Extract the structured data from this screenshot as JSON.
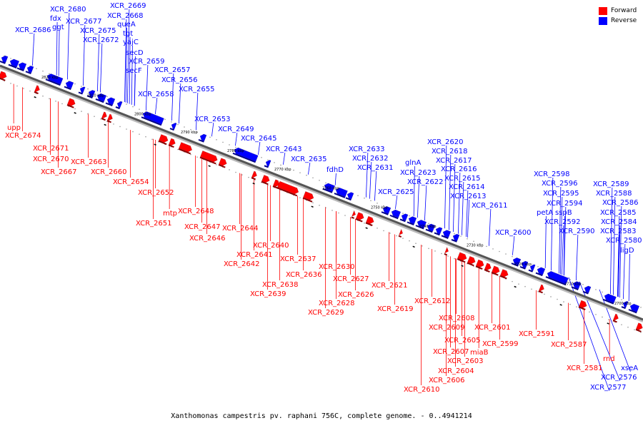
{
  "caption": "Xanthomonas campestris pv. raphani 756C, complete genome. - 0..4941214",
  "legend": [
    {
      "label": "Forward",
      "color": "#ff0000"
    },
    {
      "label": "Reverse",
      "color": "#0000ff"
    }
  ],
  "colors": {
    "forward": "#ff0000",
    "reverse": "#0000ff",
    "backbone": "#555555"
  },
  "ticks": [
    "2820 kbp",
    "2810 kbp",
    "2800 kbp",
    "2790 kbp",
    "2780 kbp",
    "2770 kbp",
    "2760 kbp",
    "2750 kbp",
    "2740 kbp",
    "2730 kbp",
    "2720 kbp",
    "2710 kbp",
    "2700 kbp"
  ],
  "reverse_labels": [
    "XCR_2680",
    "fdx",
    "ggt",
    "XCR_2686",
    "XCR_2677",
    "XCR_2669",
    "XCR_2668",
    "queA",
    "tgt",
    "XCR_2675",
    "yajC",
    "XCR_2672",
    "secD",
    "XCR_2659",
    "secF",
    "XCR_2657",
    "XCR_2656",
    "XCR_2658",
    "XCR_2655",
    "XCR_2653",
    "XCR_2649",
    "XCR_2645",
    "XCR_2643",
    "XCR_2635",
    "fdhD",
    "XCR_2633",
    "XCR_2632",
    "XCR_2631",
    "XCR_2625",
    "glnA",
    "XCR_2623",
    "XCR_2622",
    "XCR_2620",
    "XCR_2618",
    "XCR_2617",
    "XCR_2616",
    "XCR_2615",
    "XCR_2614",
    "XCR_2613",
    "XCR_2611",
    "XCR_2600",
    "XCR_2598",
    "XCR_2596",
    "XCR_2595",
    "XCR_2594",
    "petA",
    "sspB",
    "XCR_2592",
    "XCR_2590",
    "XCR_2589",
    "XCR_2588",
    "XCR_2586",
    "XCR_2585",
    "XCR_2584",
    "XCR_2583",
    "XCR_2580",
    "ligD",
    "XCR_2576",
    "XCR_2577",
    "xseA"
  ],
  "forward_labels": [
    "upp",
    "XCR_2674",
    "XCR_2671",
    "XCR_2670",
    "XCR_2667",
    "XCR_2663",
    "XCR_2660",
    "XCR_2654",
    "XCR_2652",
    "mtp",
    "XCR_2651",
    "XCR_2648",
    "XCR_2647",
    "XCR_2646",
    "XCR_2644",
    "XCR_2640",
    "XCR_2641",
    "XCR_2642",
    "XCR_2637",
    "XCR_2636",
    "XCR_2638",
    "XCR_2639",
    "XCR_2630",
    "XCR_2627",
    "XCR_2626",
    "XCR_2628",
    "XCR_2629",
    "XCR_2621",
    "XCR_2619",
    "XCR_2612",
    "XCR_2608",
    "XCR_2609",
    "XCR_2605",
    "XCR_2601",
    "XCR_2599",
    "XCR_2607",
    "miaB",
    "XCR_2603",
    "XCR_2604",
    "XCR_2606",
    "XCR_2610",
    "XCR_2591",
    "XCR_2587",
    "XCR_2581",
    "rnd"
  ]
}
